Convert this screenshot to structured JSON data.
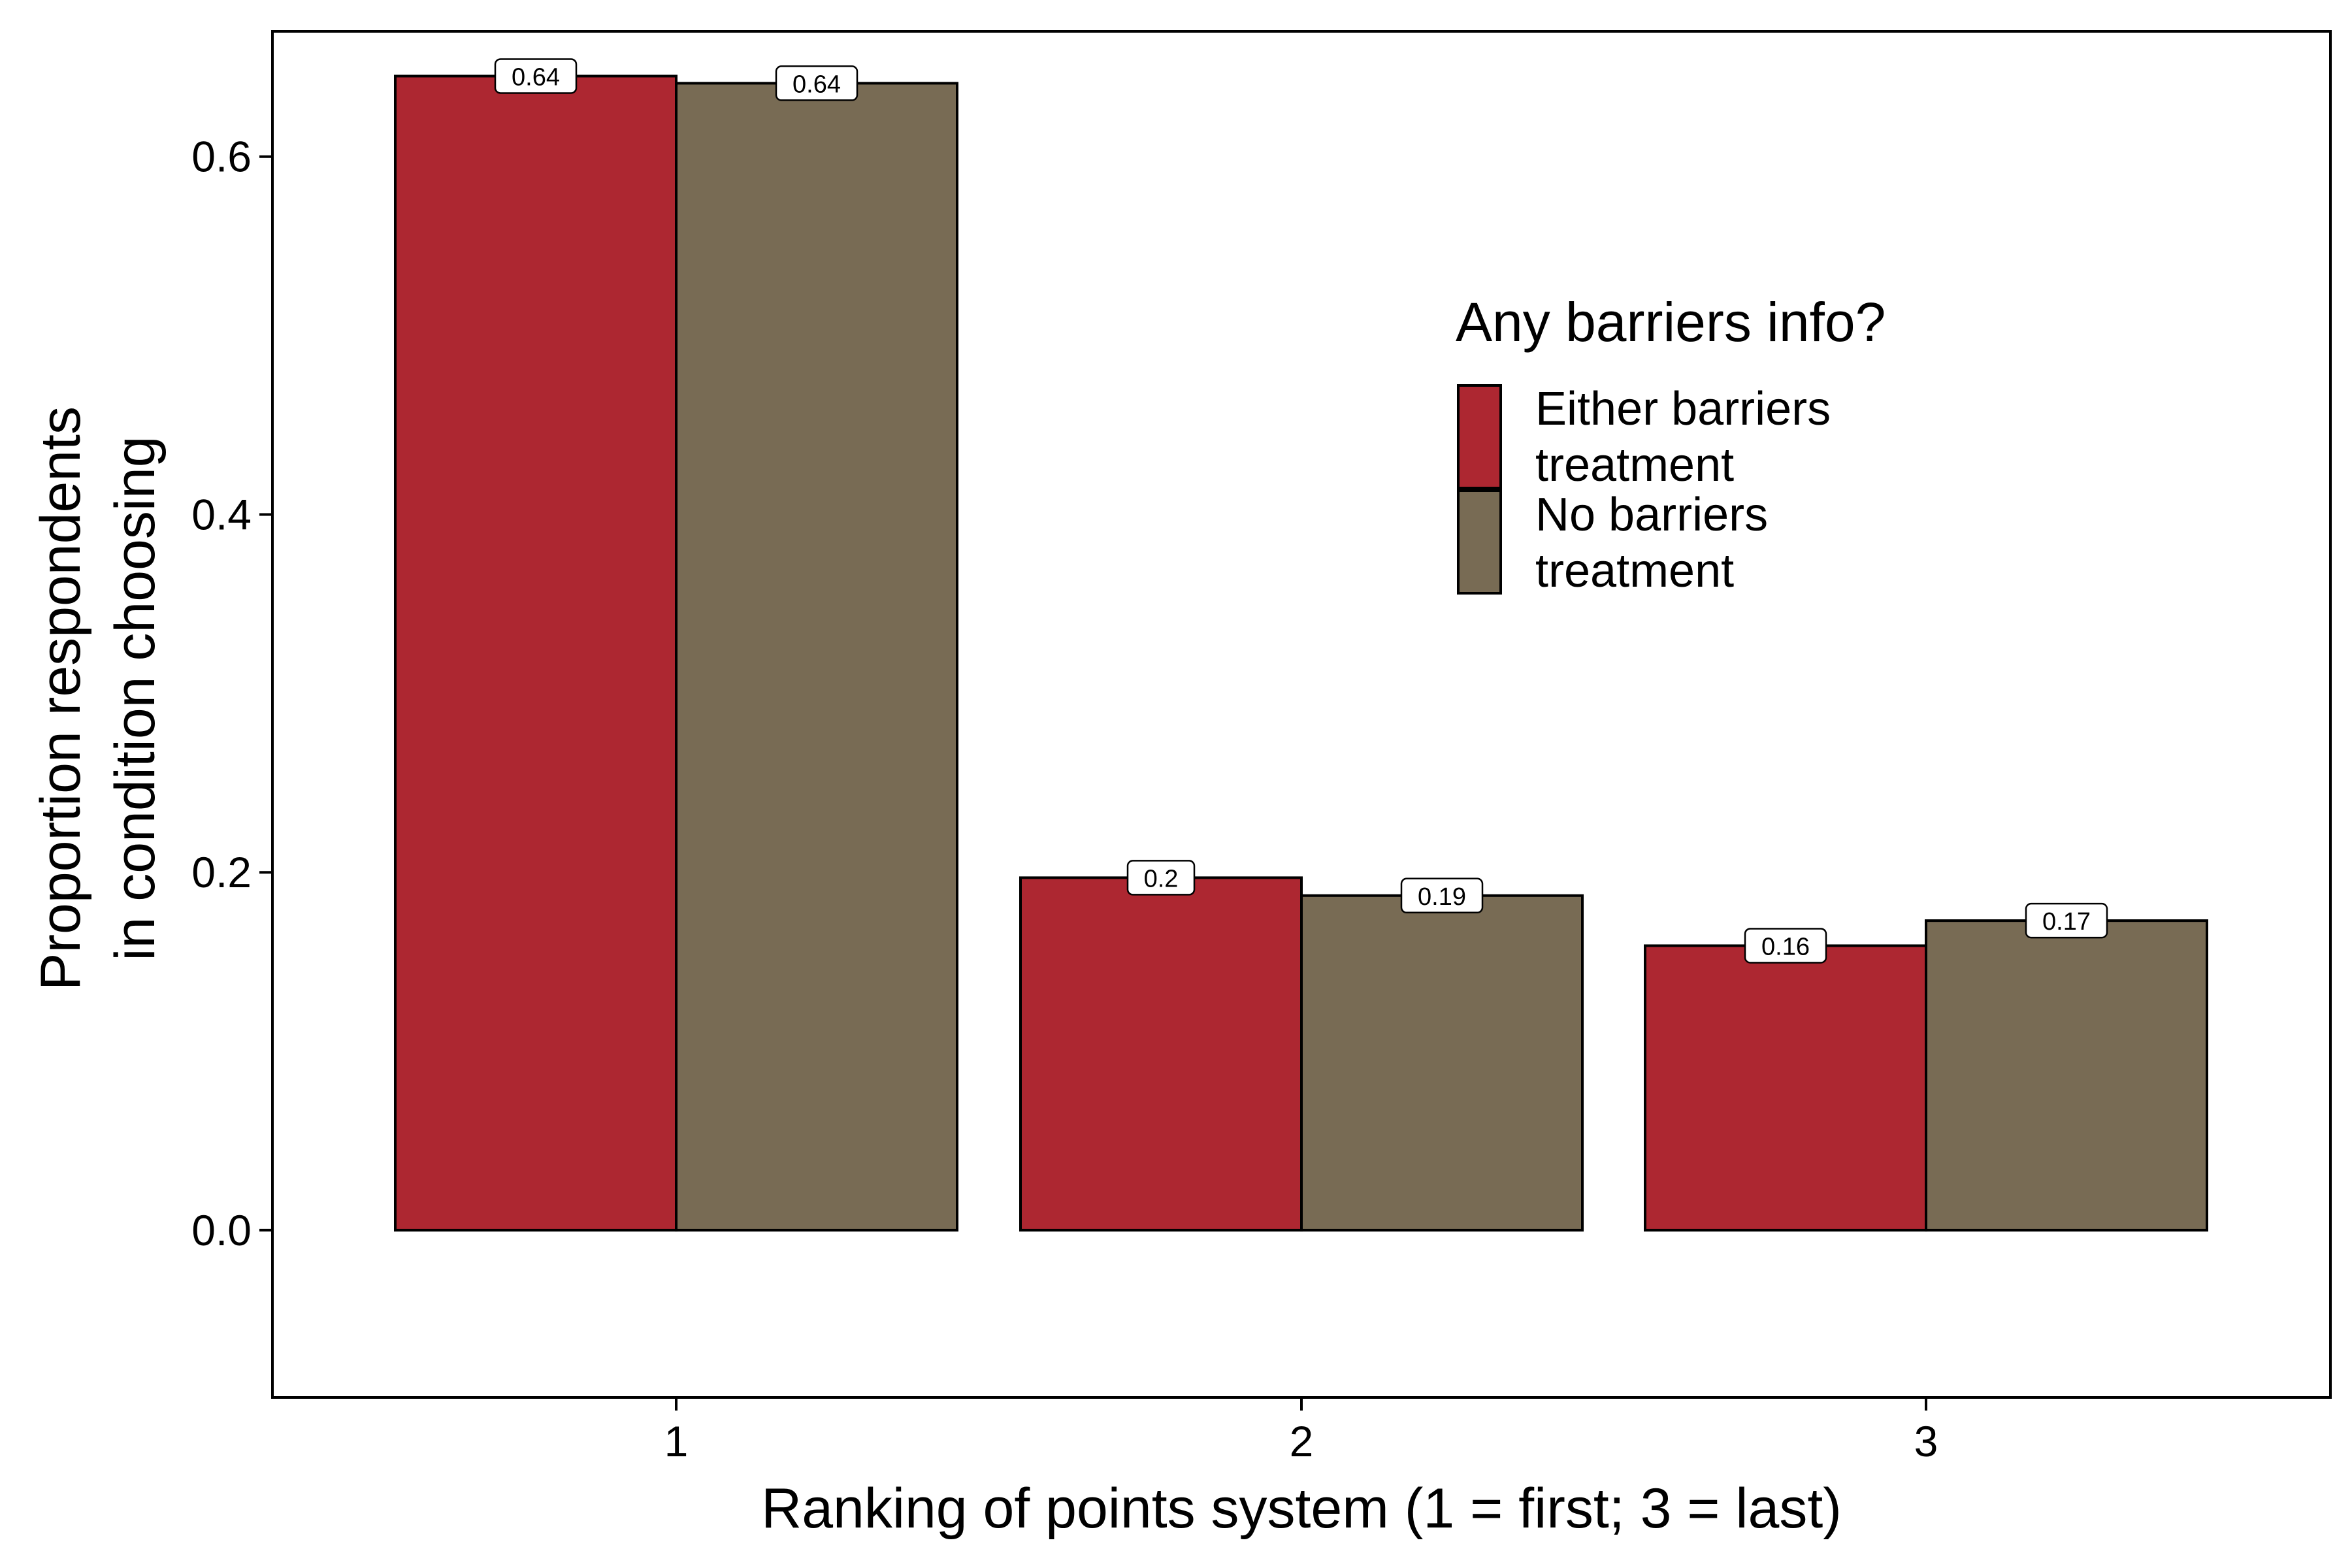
{
  "chart_data": {
    "type": "bar",
    "title": "",
    "xlabel": "Ranking of points system (1 = first; 3 = last)",
    "ylabel": [
      "Proportion respondents",
      "in condition choosing"
    ],
    "categories": [
      "1",
      "2",
      "3"
    ],
    "ylim": [
      -0.0935,
      0.67
    ],
    "yticks": [
      0.0,
      0.2,
      0.4,
      0.6
    ],
    "ytick_labels": [
      "0.0",
      "0.2",
      "0.4",
      "0.6"
    ],
    "grid": false,
    "legend": {
      "title": "Any barriers info?",
      "placement": "top-right"
    },
    "series": [
      {
        "name": [
          "Either barriers",
          "treatment"
        ],
        "color": "#ad2731",
        "values": [
          0.645,
          0.197,
          0.159
        ],
        "labels": [
          "0.64",
          "0.2",
          "0.16"
        ]
      },
      {
        "name": [
          "No barriers",
          "treatment"
        ],
        "color": "#786b54",
        "values": [
          0.641,
          0.187,
          0.173
        ],
        "labels": [
          "0.64",
          "0.19",
          "0.17"
        ]
      }
    ]
  }
}
